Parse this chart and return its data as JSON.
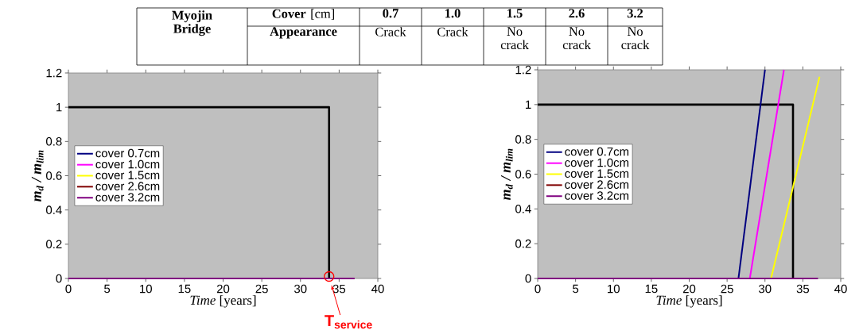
{
  "chart_data": [
    {
      "type": "other",
      "annotations": [
        "Myojin Bridge",
        "**Cover** [cm]",
        "0.7",
        "1.0",
        "1.5",
        "2.6",
        "3.2",
        "Appearance",
        "Crack",
        "Crack",
        "No crack",
        "No crack",
        "No crack"
      ]
    },
    {
      "type": "line",
      "xlabel": "*Time* [years]",
      "ylabel": "m$_{d}$ / m$_{lim}$",
      "xlim": [
        0,
        40
      ],
      "ylim": [
        0,
        1.2
      ],
      "xticks": [
        0,
        5,
        10,
        15,
        20,
        25,
        30,
        35,
        40
      ],
      "yticks": [
        0,
        0.2,
        0.4,
        0.6,
        0.8,
        1,
        1.2
      ],
      "legend": "left",
      "series": [
        {
          "color": "#000000",
          "x": [
            0,
            33.7,
            33.7
          ],
          "values": [
            1,
            1,
            0
          ]
        },
        {
          "name": "cover 0.7cm",
          "color": "#000080"
        },
        {
          "name": "cover 1.0cm",
          "color": "#ff00ff"
        },
        {
          "name": "cover 1.5cm",
          "color": "#ffff00"
        },
        {
          "name": "cover 2.6cm",
          "color": "#800000"
        },
        {
          "name": "cover 3.2cm",
          "color": "#800080",
          "x": [
            0,
            37
          ],
          "values": [
            0,
            0
          ]
        }
      ],
      "annotations": [
        {
          "text": "T$_{service}$",
          "x": 33.7,
          "y": 0
        }
      ]
    },
    {
      "type": "line",
      "xlabel": "*Time* [years]",
      "ylabel": "m$_{d}$ / m$_{lim}$",
      "xlim": [
        0,
        40
      ],
      "ylim": [
        0,
        1.2
      ],
      "xticks": [
        0,
        5,
        10,
        15,
        20,
        25,
        30,
        35,
        40
      ],
      "yticks": [
        0,
        0.2,
        0.4,
        0.6,
        0.8,
        1,
        1.2
      ],
      "legend": "left",
      "series": [
        {
          "color": "#000000",
          "x": [
            0,
            33.7,
            33.7
          ],
          "values": [
            1,
            1,
            0
          ]
        },
        {
          "name": "cover 0.7cm",
          "color": "#000080",
          "x": [
            26.5,
            30
          ],
          "values": [
            0,
            1.2
          ]
        },
        {
          "name": "cover 1.0cm",
          "color": "#ff00ff",
          "x": [
            28,
            32.5
          ],
          "values": [
            0,
            1.2
          ]
        },
        {
          "name": "cover 1.5cm",
          "color": "#ffff00",
          "x": [
            30.8,
            37.2
          ],
          "values": [
            0,
            1.16
          ]
        },
        {
          "name": "cover 2.6cm",
          "color": "#800000"
        },
        {
          "name": "cover 3.2cm",
          "color": "#800080",
          "x": [
            0,
            37
          ],
          "values": [
            0,
            0
          ]
        }
      ]
    }
  ]
}
